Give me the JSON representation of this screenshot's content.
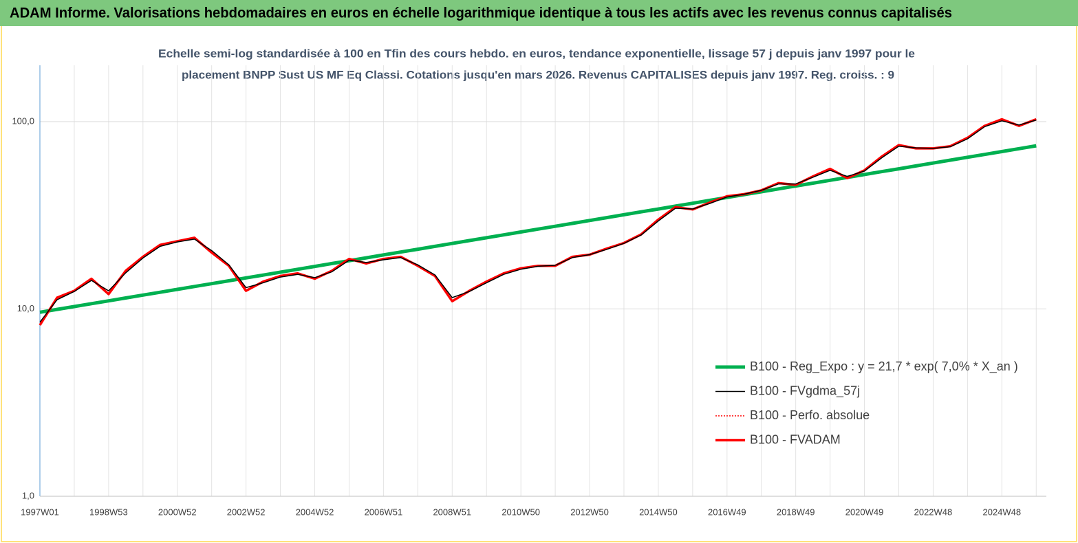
{
  "header": "ADAM Informe. Valorisations hebdomadaires en euros en échelle logarithmique identique à tous les actifs avec les revenus connus capitalisés",
  "chart_data": {
    "type": "line",
    "title_lines": [
      "Echelle semi-log standardisée à 100 en Tfin des cours hebdo. en euros, tendance exponentielle, lissage 57 j depuis janv 1997 pour le",
      "placement BNPP Sust US MF Eq Classi. Cotations jusqu'en mars 2026. Revenus CAPITALISES depuis janv 1997. Reg. croiss. : 9"
    ],
    "categories": [
      "1997W01",
      null,
      null,
      null,
      "1998W53",
      null,
      null,
      null,
      "2000W52",
      null,
      null,
      null,
      "2002W52",
      null,
      null,
      null,
      "2004W52",
      null,
      null,
      null,
      "2006W51",
      null,
      null,
      null,
      "2008W51",
      null,
      null,
      null,
      "2010W50",
      null,
      null,
      null,
      "2012W50",
      null,
      null,
      null,
      "2014W50",
      null,
      null,
      null,
      "2016W49",
      null,
      null,
      null,
      "2018W49",
      null,
      null,
      null,
      "2020W49",
      null,
      null,
      null,
      "2022W48",
      null,
      null,
      null,
      "2024W48",
      null,
      null
    ],
    "yscale": "log",
    "ylim": [
      1,
      200
    ],
    "yticks": [
      {
        "value": 1,
        "label": "1,0"
      },
      {
        "value": 10,
        "label": "10,0"
      },
      {
        "value": 100,
        "label": "100,0"
      }
    ],
    "grid": true,
    "legend": "lower right",
    "series": [
      {
        "name": "B100 - Reg_Expo : y = 21,7 * exp( 7,0% *  X_an )",
        "color": "#00b050",
        "style": "solid",
        "width": 5,
        "values": [
          9.6,
          9.95,
          10.3,
          10.67,
          11.05,
          11.45,
          11.86,
          12.28,
          12.72,
          13.18,
          13.65,
          14.14,
          14.65,
          15.17,
          15.72,
          16.28,
          16.87,
          17.48,
          18.1,
          18.75,
          19.43,
          20.13,
          20.85,
          21.6,
          22.37,
          23.18,
          24.01,
          24.87,
          25.77,
          26.69,
          27.65,
          28.65,
          29.68,
          30.75,
          31.85,
          33.0,
          34.18,
          35.41,
          36.68,
          38.0,
          39.37,
          40.78,
          42.25,
          43.77,
          45.34,
          46.97,
          48.66,
          50.41,
          52.22,
          54.1,
          56.04,
          58.05,
          60.14,
          62.3,
          64.54,
          66.86,
          69.27,
          71.76,
          74.34
        ]
      },
      {
        "name": "B100 - FVgdma_57j",
        "color": "#000000",
        "style": "solid",
        "width": 1.5,
        "values": [
          8.5,
          11.2,
          12.4,
          14.2,
          12.5,
          15.6,
          18.7,
          21.6,
          22.8,
          23.6,
          20.5,
          17.2,
          13,
          13.8,
          14.8,
          15.3,
          14.7,
          15.8,
          18.2,
          17.7,
          18.3,
          18.8,
          17.2,
          15.2,
          11.5,
          12.4,
          13.8,
          15.3,
          16.3,
          16.9,
          17.1,
          18.8,
          19.5,
          20.8,
          22.4,
          24.8,
          29.5,
          34.5,
          34.2,
          36.6,
          39.6,
          41,
          43,
          46.5,
          46.5,
          50.5,
          55,
          51,
          54.5,
          64,
          74,
          72.5,
          72,
          73.5,
          81,
          94,
          101,
          96,
          102
        ]
      },
      {
        "name": "B100 - Perfo. absolue",
        "color": "#ff0000",
        "style": "dotted",
        "width": 1.5,
        "values": [
          8.2,
          11.5,
          12.5,
          14.5,
          12,
          16,
          19,
          22,
          23,
          24,
          20,
          17,
          12.5,
          14,
          15,
          15.5,
          14.5,
          16,
          18.5,
          17.5,
          18.5,
          19,
          17,
          15,
          11,
          12.5,
          14,
          15.5,
          16.5,
          17,
          17,
          19,
          19.5,
          21,
          22.5,
          25,
          30,
          35,
          34,
          37,
          40,
          41,
          43,
          47,
          46,
          51,
          56,
          50,
          55,
          65,
          75,
          72,
          72,
          74,
          82,
          95,
          103,
          95,
          103
        ]
      },
      {
        "name": "B100 - FVADAM",
        "color": "#ff0000",
        "style": "solid",
        "width": 3.5,
        "values": [
          8.2,
          11.5,
          12.5,
          14.5,
          12,
          16,
          19,
          22,
          23,
          24,
          20,
          17,
          12.5,
          14,
          15,
          15.5,
          14.5,
          16,
          18.5,
          17.5,
          18.5,
          19,
          17,
          15,
          11,
          12.5,
          14,
          15.5,
          16.5,
          17,
          17,
          19,
          19.5,
          21,
          22.5,
          25,
          30,
          35,
          34,
          37,
          40,
          41,
          43,
          47,
          46,
          51,
          56,
          50,
          55,
          65,
          75,
          72,
          72,
          74,
          82,
          95,
          103,
          95,
          103
        ]
      }
    ]
  }
}
